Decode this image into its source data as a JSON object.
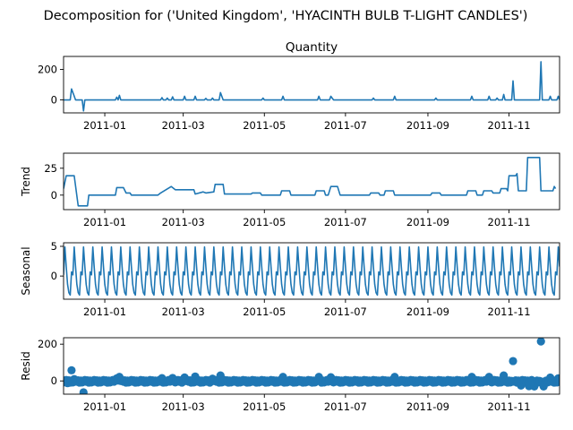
{
  "figure": {
    "suptitle": "Decomposition for ('United Kingdom', 'HYACINTH BULB T-LIGHT CANDLES')"
  },
  "colors": {
    "series": "#1f77b4"
  },
  "chart_data": [
    {
      "type": "line",
      "title": "Quantity",
      "ylabel": "",
      "xlim": [
        "2010-12-01",
        "2011-12-09"
      ],
      "ylim": [
        -85,
        285
      ],
      "yticks": [
        0,
        200
      ],
      "xticks": [
        "2011-01-01",
        "2011-03-01",
        "2011-05-01",
        "2011-07-01",
        "2011-09-01",
        "2011-11-01"
      ],
      "xticklabels": [
        "2011-01",
        "2011-03",
        "2011-05",
        "2011-07",
        "2011-09",
        "2011-11"
      ],
      "grid": false,
      "series": [
        {
          "values": [
            [
              "2010-12-01",
              0
            ],
            [
              "2010-12-06",
              0
            ],
            [
              "2010-12-07",
              72
            ],
            [
              "2010-12-09",
              25
            ],
            [
              "2010-12-10",
              0
            ],
            [
              "2010-12-15",
              0
            ],
            [
              "2010-12-16",
              -72
            ],
            [
              "2010-12-17",
              0
            ],
            [
              "2011-01-09",
              0
            ],
            [
              "2011-01-10",
              18
            ],
            [
              "2011-01-11",
              0
            ],
            [
              "2011-01-12",
              30
            ],
            [
              "2011-01-13",
              0
            ],
            [
              "2011-02-12",
              0
            ],
            [
              "2011-02-13",
              15
            ],
            [
              "2011-02-14",
              0
            ],
            [
              "2011-02-16",
              0
            ],
            [
              "2011-02-17",
              12
            ],
            [
              "2011-02-18",
              0
            ],
            [
              "2011-02-20",
              0
            ],
            [
              "2011-02-21",
              20
            ],
            [
              "2011-02-22",
              0
            ],
            [
              "2011-03-01",
              0
            ],
            [
              "2011-03-02",
              24
            ],
            [
              "2011-03-03",
              0
            ],
            [
              "2011-03-09",
              0
            ],
            [
              "2011-03-10",
              24
            ],
            [
              "2011-03-11",
              0
            ],
            [
              "2011-03-17",
              0
            ],
            [
              "2011-03-18",
              10
            ],
            [
              "2011-03-19",
              0
            ],
            [
              "2011-03-22",
              0
            ],
            [
              "2011-03-23",
              12
            ],
            [
              "2011-03-24",
              0
            ],
            [
              "2011-03-28",
              0
            ],
            [
              "2011-03-29",
              48
            ],
            [
              "2011-03-31",
              0
            ],
            [
              "2011-04-29",
              0
            ],
            [
              "2011-04-30",
              12
            ],
            [
              "2011-05-01",
              0
            ],
            [
              "2011-05-14",
              0
            ],
            [
              "2011-05-15",
              24
            ],
            [
              "2011-05-16",
              0
            ],
            [
              "2011-06-10",
              0
            ],
            [
              "2011-06-11",
              24
            ],
            [
              "2011-06-12",
              0
            ],
            [
              "2011-06-19",
              0
            ],
            [
              "2011-06-20",
              24
            ],
            [
              "2011-06-22",
              0
            ],
            [
              "2011-07-21",
              0
            ],
            [
              "2011-07-22",
              12
            ],
            [
              "2011-07-23",
              0
            ],
            [
              "2011-08-06",
              0
            ],
            [
              "2011-08-07",
              24
            ],
            [
              "2011-08-08",
              0
            ],
            [
              "2011-09-06",
              0
            ],
            [
              "2011-09-07",
              12
            ],
            [
              "2011-09-08",
              0
            ],
            [
              "2011-10-03",
              0
            ],
            [
              "2011-10-04",
              24
            ],
            [
              "2011-10-05",
              0
            ],
            [
              "2011-10-16",
              0
            ],
            [
              "2011-10-17",
              24
            ],
            [
              "2011-10-18",
              0
            ],
            [
              "2011-10-22",
              0
            ],
            [
              "2011-10-23",
              12
            ],
            [
              "2011-10-24",
              0
            ],
            [
              "2011-10-27",
              0
            ],
            [
              "2011-10-28",
              36
            ],
            [
              "2011-10-29",
              0
            ],
            [
              "2011-11-03",
              0
            ],
            [
              "2011-11-04",
              125
            ],
            [
              "2011-11-05",
              0
            ],
            [
              "2011-11-24",
              0
            ],
            [
              "2011-11-25",
              250
            ],
            [
              "2011-11-26",
              0
            ],
            [
              "2011-12-01",
              0
            ],
            [
              "2011-12-02",
              24
            ],
            [
              "2011-12-03",
              0
            ],
            [
              "2011-12-07",
              0
            ],
            [
              "2011-12-08",
              24
            ],
            [
              "2011-12-09",
              0
            ]
          ]
        }
      ]
    },
    {
      "type": "line",
      "title": "",
      "ylabel": "Trend",
      "xlim": [
        "2010-12-01",
        "2011-12-09"
      ],
      "ylim": [
        -13.5,
        39
      ],
      "yticks": [
        0,
        25
      ],
      "xticks": [
        "2011-01-01",
        "2011-03-01",
        "2011-05-01",
        "2011-07-01",
        "2011-09-01",
        "2011-11-01"
      ],
      "xticklabels": [
        "2011-01",
        "2011-03",
        "2011-05",
        "2011-07",
        "2011-09",
        "2011-11"
      ],
      "grid": false,
      "series": [
        {
          "values": [
            [
              "2010-12-01",
              6
            ],
            [
              "2010-12-03",
              18
            ],
            [
              "2010-12-09",
              18
            ],
            [
              "2010-12-12",
              -10
            ],
            [
              "2010-12-19",
              -10
            ],
            [
              "2010-12-20",
              0
            ],
            [
              "2011-01-09",
              0
            ],
            [
              "2011-01-10",
              7
            ],
            [
              "2011-01-15",
              7
            ],
            [
              "2011-01-17",
              2
            ],
            [
              "2011-01-20",
              2
            ],
            [
              "2011-01-21",
              0
            ],
            [
              "2011-02-10",
              0
            ],
            [
              "2011-02-12",
              2
            ],
            [
              "2011-02-16",
              5
            ],
            [
              "2011-02-20",
              8
            ],
            [
              "2011-02-23",
              5
            ],
            [
              "2011-03-09",
              5
            ],
            [
              "2011-03-10",
              1
            ],
            [
              "2011-03-16",
              3
            ],
            [
              "2011-03-18",
              2
            ],
            [
              "2011-03-24",
              3
            ],
            [
              "2011-03-25",
              10
            ],
            [
              "2011-03-31",
              10
            ],
            [
              "2011-04-01",
              1
            ],
            [
              "2011-04-21",
              1
            ],
            [
              "2011-04-22",
              2
            ],
            [
              "2011-04-28",
              2
            ],
            [
              "2011-04-29",
              0
            ],
            [
              "2011-05-13",
              0
            ],
            [
              "2011-05-14",
              4
            ],
            [
              "2011-05-20",
              4
            ],
            [
              "2011-05-21",
              0
            ],
            [
              "2011-06-08",
              0
            ],
            [
              "2011-06-09",
              4
            ],
            [
              "2011-06-15",
              4
            ],
            [
              "2011-06-16",
              0
            ],
            [
              "2011-06-18",
              0
            ],
            [
              "2011-06-20",
              8
            ],
            [
              "2011-06-25",
              8
            ],
            [
              "2011-06-27",
              0
            ],
            [
              "2011-07-19",
              0
            ],
            [
              "2011-07-20",
              2
            ],
            [
              "2011-07-26",
              2
            ],
            [
              "2011-07-27",
              0
            ],
            [
              "2011-07-30",
              0
            ],
            [
              "2011-07-31",
              4
            ],
            [
              "2011-08-06",
              4
            ],
            [
              "2011-08-07",
              0
            ],
            [
              "2011-09-03",
              0
            ],
            [
              "2011-09-04",
              2
            ],
            [
              "2011-09-10",
              2
            ],
            [
              "2011-09-11",
              0
            ],
            [
              "2011-09-30",
              0
            ],
            [
              "2011-10-01",
              4
            ],
            [
              "2011-10-07",
              4
            ],
            [
              "2011-10-08",
              0
            ],
            [
              "2011-10-12",
              0
            ],
            [
              "2011-10-13",
              4
            ],
            [
              "2011-10-19",
              4
            ],
            [
              "2011-10-20",
              2
            ],
            [
              "2011-10-25",
              2
            ],
            [
              "2011-10-26",
              6
            ],
            [
              "2011-10-30",
              6
            ],
            [
              "2011-10-31",
              4
            ],
            [
              "2011-11-01",
              18
            ],
            [
              "2011-11-06",
              18
            ],
            [
              "2011-11-07",
              20
            ],
            [
              "2011-11-08",
              4
            ],
            [
              "2011-11-14",
              4
            ],
            [
              "2011-11-15",
              35
            ],
            [
              "2011-11-24",
              35
            ],
            [
              "2011-11-25",
              4
            ],
            [
              "2011-12-04",
              4
            ],
            [
              "2011-12-05",
              8
            ],
            [
              "2011-12-06",
              6
            ]
          ]
        }
      ]
    },
    {
      "type": "line",
      "title": "",
      "ylabel": "Seasonal",
      "xlim": [
        "2010-12-01",
        "2011-12-09"
      ],
      "ylim": [
        -3.9,
        5.6
      ],
      "yticks": [
        0,
        5
      ],
      "xticks": [
        "2011-01-01",
        "2011-03-01",
        "2011-05-01",
        "2011-07-01",
        "2011-09-01",
        "2011-11-01"
      ],
      "xticklabels": [
        "2011-01",
        "2011-03",
        "2011-05",
        "2011-07",
        "2011-09",
        "2011-11"
      ],
      "grid": false,
      "period_days": 7,
      "pattern": [
        0.2,
        4.9,
        1.6,
        -1.4,
        -2.8,
        -3.2,
        0.7
      ],
      "series": [
        {
          "start": "2010-12-01",
          "end": "2011-12-09"
        }
      ]
    },
    {
      "type": "scatter",
      "title": "",
      "ylabel": "Resid",
      "xlim": [
        "2010-12-01",
        "2011-12-09"
      ],
      "ylim": [
        -72,
        235
      ],
      "yticks": [
        0,
        200
      ],
      "xticks": [
        "2011-01-01",
        "2011-03-01",
        "2011-05-01",
        "2011-07-01",
        "2011-09-01",
        "2011-11-01"
      ],
      "xticklabels": [
        "2011-01",
        "2011-03",
        "2011-05",
        "2011-07",
        "2011-09",
        "2011-11"
      ],
      "grid": false,
      "baseline_jitter": [
        -8,
        0,
        5,
        -4,
        3,
        -9,
        2
      ],
      "outliers": [
        [
          "2010-12-04",
          -12
        ],
        [
          "2010-12-07",
          58
        ],
        [
          "2010-12-09",
          10
        ],
        [
          "2010-12-16",
          -62
        ],
        [
          "2011-01-10",
          14
        ],
        [
          "2011-01-12",
          22
        ],
        [
          "2011-02-13",
          15
        ],
        [
          "2011-02-21",
          16
        ],
        [
          "2011-03-02",
          19
        ],
        [
          "2011-03-10",
          24
        ],
        [
          "2011-03-23",
          12
        ],
        [
          "2011-03-29",
          30
        ],
        [
          "2011-05-15",
          22
        ],
        [
          "2011-06-11",
          22
        ],
        [
          "2011-06-20",
          20
        ],
        [
          "2011-08-07",
          22
        ],
        [
          "2011-10-04",
          22
        ],
        [
          "2011-10-17",
          22
        ],
        [
          "2011-10-28",
          30
        ],
        [
          "2011-11-04",
          108
        ],
        [
          "2011-11-10",
          -25
        ],
        [
          "2011-11-16",
          -28
        ],
        [
          "2011-11-20",
          -30
        ],
        [
          "2011-11-25",
          215
        ],
        [
          "2011-11-27",
          -30
        ],
        [
          "2011-12-02",
          18
        ],
        [
          "2011-12-08",
          14
        ]
      ]
    }
  ]
}
